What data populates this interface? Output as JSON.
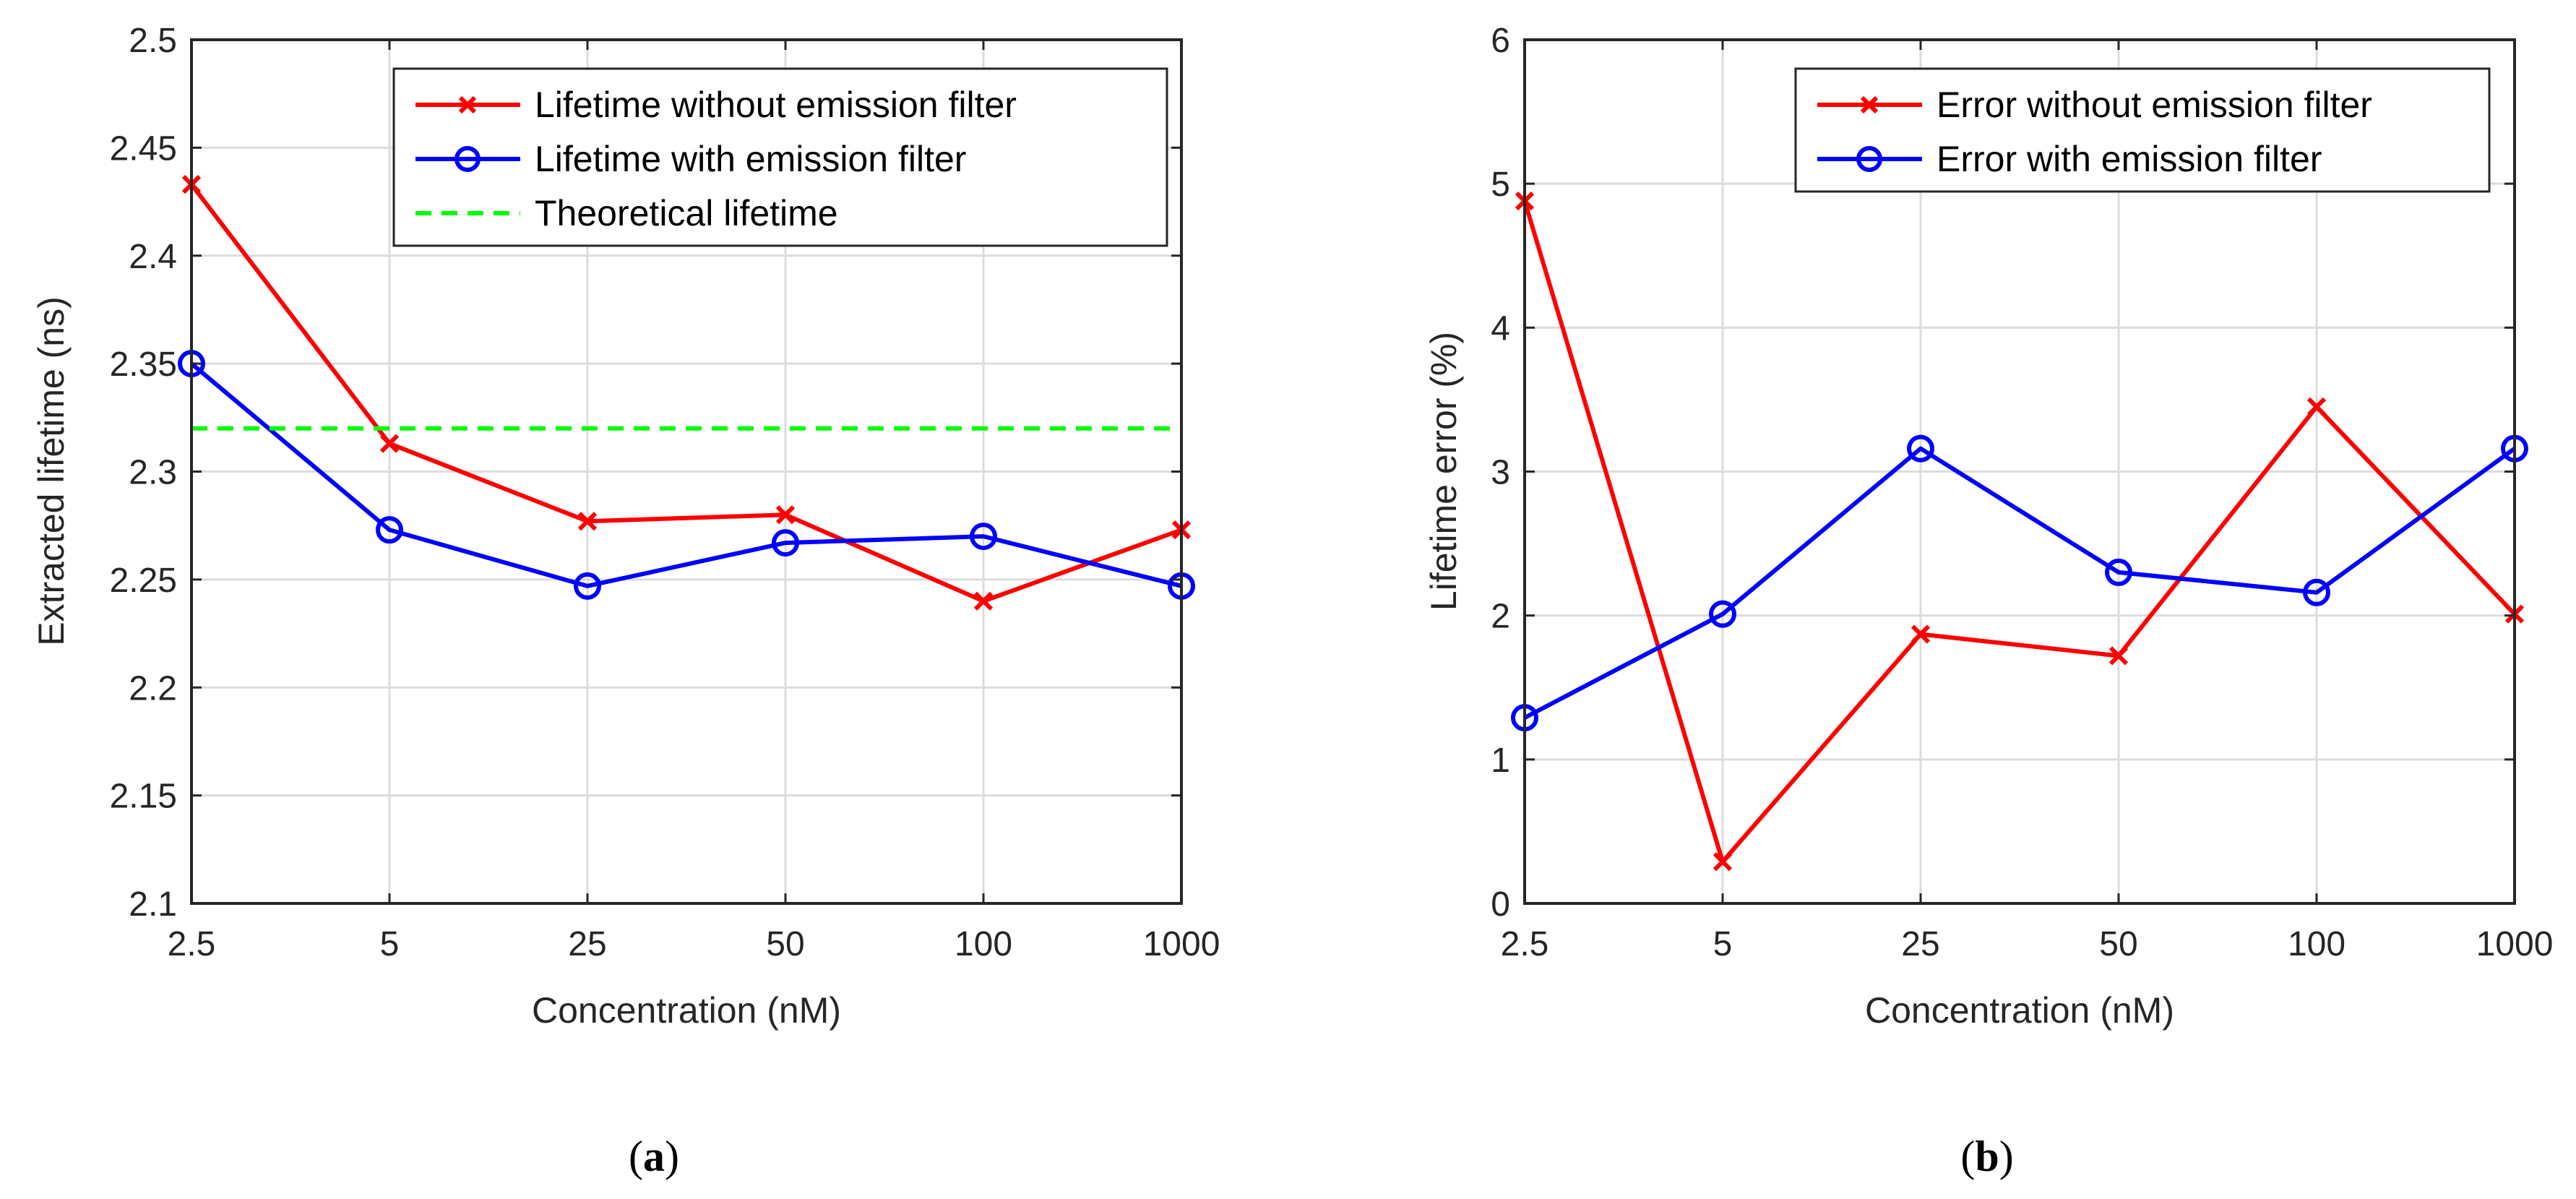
{
  "chart_data": [
    {
      "type": "line",
      "panel_caption": "(a)",
      "caption_letter": "a",
      "xlabel": "Concentration (nM)",
      "ylabel": "Extracted lifetime (ns)",
      "categories": [
        "2.5",
        "5",
        "25",
        "50",
        "100",
        "1000"
      ],
      "ylim": [
        2.1,
        2.5
      ],
      "yticks": [
        "2.1",
        "2.15",
        "2.2",
        "2.25",
        "2.3",
        "2.35",
        "2.4",
        "2.45",
        "2.5"
      ],
      "grid": true,
      "legend_position": "top-right",
      "series": [
        {
          "name": "Lifetime without emission filter",
          "values": [
            2.433,
            2.313,
            2.277,
            2.28,
            2.24,
            2.273
          ],
          "color": "#ff0000",
          "marker": "x"
        },
        {
          "name": "Lifetime with emission filter",
          "values": [
            2.35,
            2.273,
            2.247,
            2.267,
            2.27,
            2.247
          ],
          "color": "#0000ff",
          "marker": "o"
        },
        {
          "name": "Theoretical lifetime",
          "values": [
            2.32,
            2.32,
            2.32,
            2.32,
            2.32,
            2.32
          ],
          "color": "#00ff00",
          "marker": "none",
          "line": "dashed"
        }
      ]
    },
    {
      "type": "line",
      "panel_caption": "(b)",
      "caption_letter": "b",
      "xlabel": "Concentration (nM)",
      "ylabel": "Lifetime error (%)",
      "categories": [
        "2.5",
        "5",
        "25",
        "50",
        "100",
        "1000"
      ],
      "ylim": [
        0,
        6
      ],
      "yticks": [
        "0",
        "1",
        "2",
        "3",
        "4",
        "5",
        "6"
      ],
      "grid": true,
      "legend_position": "top-right",
      "series": [
        {
          "name": "Error without emission filter",
          "values": [
            4.88,
            0.29,
            1.87,
            1.72,
            3.45,
            2.01
          ],
          "color": "#ff0000",
          "marker": "x"
        },
        {
          "name": "Error with emission filter",
          "values": [
            1.29,
            2.01,
            3.16,
            2.3,
            2.16,
            3.16
          ],
          "color": "#0000ff",
          "marker": "o"
        }
      ]
    }
  ]
}
